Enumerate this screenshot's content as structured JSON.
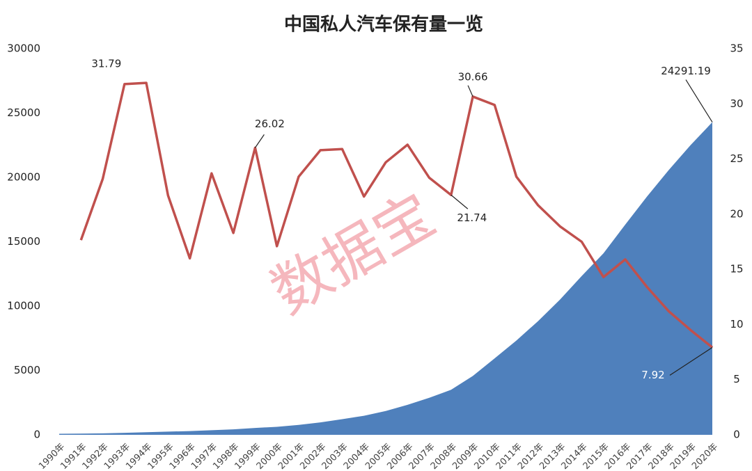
{
  "chart_data": {
    "type": "combo",
    "title": "中国私人汽车保有量一览",
    "watermark": "数据宝",
    "categories": [
      "1990年",
      "1991年",
      "1992年",
      "1993年",
      "1994年",
      "1995年",
      "1996年",
      "1997年",
      "1998年",
      "1999年",
      "2000年",
      "2001年",
      "2002年",
      "2003年",
      "2004年",
      "2005年",
      "2006年",
      "2007年",
      "2008年",
      "2009年",
      "2010年",
      "2011年",
      "2012年",
      "2013年",
      "2014年",
      "2015年",
      "2016年",
      "2017年",
      "2018年",
      "2019年",
      "2020年"
    ],
    "series": [
      {
        "type": "area",
        "color": "#4f80bc",
        "label_indices": [
          30
        ],
        "values": [
          82,
          96,
          118,
          156,
          206,
          250,
          290,
          358,
          424,
          534,
          625,
          771,
          969,
          1219,
          1482,
          1848,
          2333,
          2876,
          3501,
          4575,
          5939,
          7327,
          8839,
          10502,
          12339,
          14099,
          16330,
          18515,
          20575,
          22509,
          24291.19
        ]
      },
      {
        "type": "line",
        "axis": "y2",
        "color": "#c0504d",
        "label_indices": [
          3,
          9,
          18,
          19,
          30
        ],
        "values": [
          null,
          17.65,
          23.2,
          31.79,
          31.9,
          21.7,
          16.0,
          23.7,
          18.3,
          26.02,
          17.1,
          23.4,
          25.8,
          25.9,
          21.6,
          24.7,
          26.3,
          23.3,
          21.74,
          30.66,
          29.9,
          23.4,
          20.8,
          18.9,
          17.5,
          14.3,
          15.9,
          13.4,
          11.2,
          9.5,
          7.92
        ]
      }
    ],
    "ylim": [
      0,
      30000
    ],
    "yticks": [
      0,
      5000,
      10000,
      15000,
      20000,
      25000,
      30000
    ],
    "y2lim": [
      0,
      35
    ],
    "y2ticks": [
      0,
      5,
      10,
      15,
      20,
      25,
      30,
      35
    ],
    "grid": false
  }
}
